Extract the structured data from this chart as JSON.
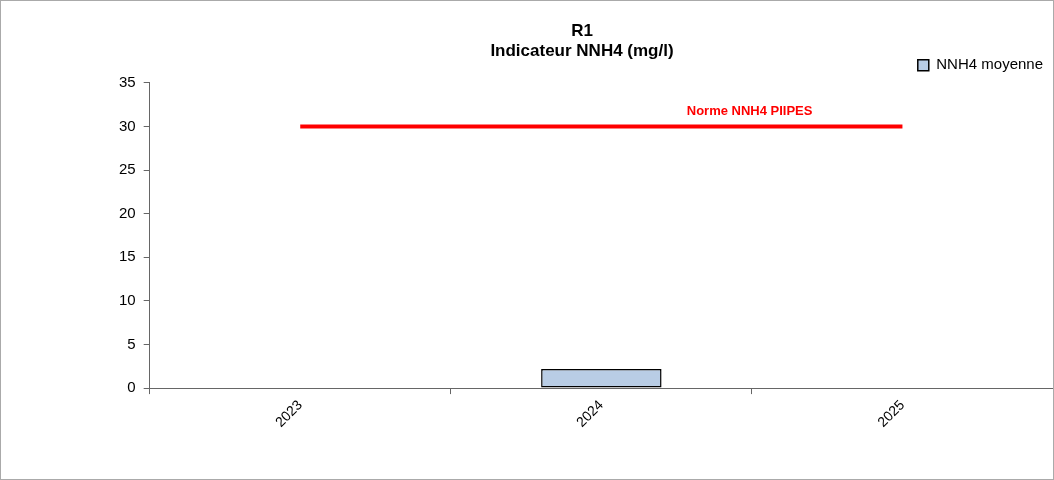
{
  "chart_data": {
    "type": "bar",
    "title": "R1",
    "subtitle": "Indicateur NNH4 (mg/l)",
    "categories": [
      "2023",
      "2024",
      "2025"
    ],
    "series": [
      {
        "name": "NNH4 moyenne",
        "color": "#b9cde5",
        "values": [
          0,
          2.2,
          0
        ]
      },
      {
        "name": "Norme NNH4 PIIPES",
        "type": "line",
        "color": "#ff0000",
        "values": [
          30,
          30,
          30
        ]
      }
    ],
    "ylim": [
      0,
      35
    ],
    "yticks": [
      0,
      5,
      10,
      15,
      20,
      25,
      30,
      35
    ],
    "grid": false,
    "legend": "top right",
    "marker": "none",
    "line_style": "solid"
  }
}
